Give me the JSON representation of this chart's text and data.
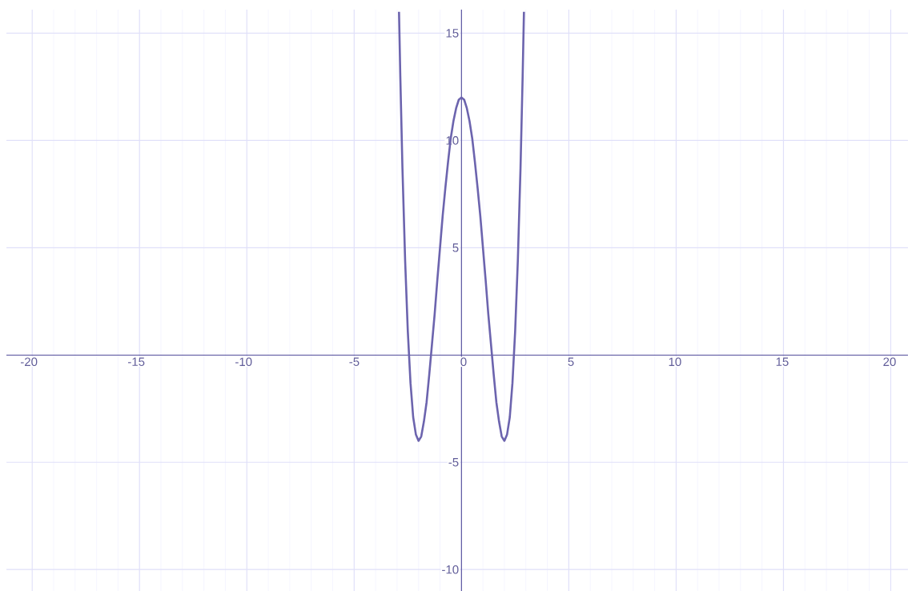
{
  "chart_data": {
    "type": "line",
    "x": [
      -2.91,
      -2.85,
      -2.75,
      -2.625,
      -2.5,
      -2.375,
      -2.25,
      -2.125,
      -2,
      -1.875,
      -1.75,
      -1.625,
      -1.5,
      -1.375,
      -1.25,
      -1.125,
      -1,
      -0.875,
      -0.75,
      -0.625,
      -0.5,
      -0.375,
      -0.25,
      -0.125,
      0,
      0.125,
      0.25,
      0.375,
      0.5,
      0.625,
      0.75,
      0.875,
      1,
      1.125,
      1.25,
      1.375,
      1.5,
      1.625,
      1.75,
      1.875,
      2,
      2.125,
      2.25,
      2.375,
      2.5,
      2.625,
      2.75,
      2.85,
      2.91
    ],
    "series": [
      {
        "color": "#6c64ae",
        "values": [
          16.0,
          13.0,
          8.7,
          4.4,
          1.1,
          -1.3,
          -2.9,
          -3.7,
          -4,
          -3.8,
          -3.1,
          -2.2,
          -0.9,
          0.5,
          1.9,
          3.5,
          5,
          6.5,
          7.8,
          9.0,
          10.1,
          10.9,
          11.5,
          11.9,
          12,
          11.9,
          11.5,
          10.9,
          10.1,
          9.0,
          7.8,
          6.5,
          5,
          3.5,
          1.9,
          0.5,
          -0.9,
          -2.2,
          -3.1,
          -3.8,
          -4,
          -3.7,
          -2.9,
          -1.3,
          1.1,
          4.4,
          8.7,
          13.0,
          16.0
        ]
      }
    ],
    "xlim": [
      -21.2,
      20.8
    ],
    "ylim": [
      -11,
      16.1
    ],
    "xticks": [
      -20,
      -15,
      -10,
      -5,
      0,
      5,
      10,
      15,
      20
    ],
    "yticks": [
      -10,
      -5,
      5,
      10,
      15
    ],
    "grid": true
  }
}
